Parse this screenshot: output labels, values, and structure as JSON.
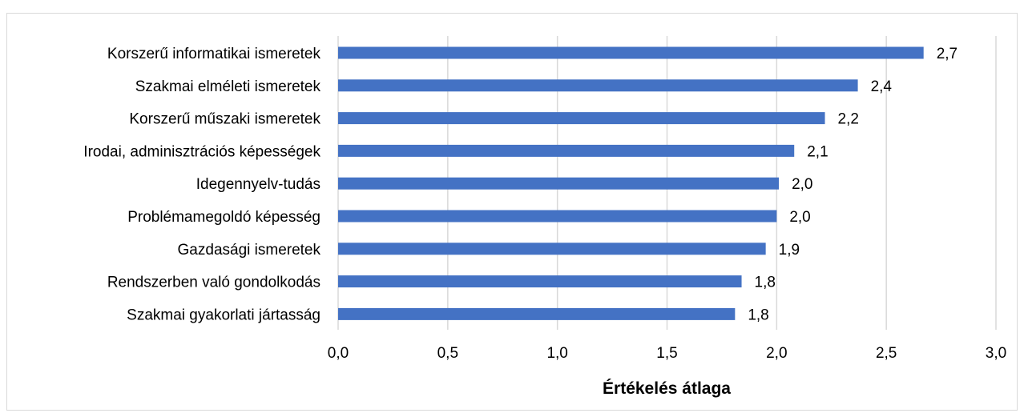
{
  "chart_data": {
    "type": "bar",
    "orientation": "horizontal",
    "title": "",
    "xlabel": "Értékelés átlaga",
    "ylabel": "",
    "xlim": [
      0,
      3
    ],
    "ticks": [
      0,
      0.5,
      1,
      1.5,
      2,
      2.5,
      3
    ],
    "tick_labels": [
      "0,0",
      "0,5",
      "1,0",
      "1,5",
      "2,0",
      "2,5",
      "3,0"
    ],
    "grid": true,
    "legend": "none",
    "bar_color": "#4472c4",
    "categories": [
      "Korszerű informatikai ismeretek",
      "Szakmai elméleti ismeretek",
      "Korszerű műszaki ismeretek",
      "Irodai, adminisztrációs képességek",
      "Idegennyelv-tudás",
      "Problémamegoldó képesség",
      "Gazdasági ismeretek",
      "Rendszerben való gondolkodás",
      "Szakmai gyakorlati jártasság"
    ],
    "values": [
      2.67,
      2.37,
      2.22,
      2.08,
      2.01,
      2.0,
      1.95,
      1.84,
      1.81
    ],
    "data_labels": [
      "2,7",
      "2,4",
      "2,2",
      "2,1",
      "2,0",
      "2,0",
      "1,9",
      "1,8",
      "1,8"
    ]
  }
}
